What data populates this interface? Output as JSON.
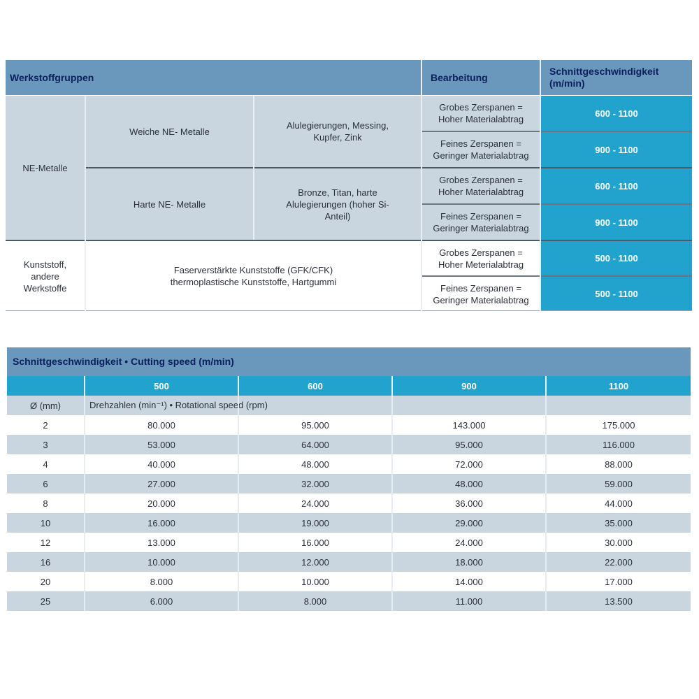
{
  "material_table": {
    "headers": {
      "groups": "Werkstoffgruppen",
      "processing": "Bearbeitung",
      "speed": "Schnittgeschwindigkeit (m/min)"
    },
    "groups": [
      {
        "name": "NE-Metalle",
        "subgroups": [
          {
            "name": "Weiche NE- Metalle",
            "materials": "Alulegierungen, Messing, Kupfer, Zink",
            "rows": [
              {
                "processing": "Grobes Zerspanen = Hoher Materialabtrag",
                "speed": "600 - 1100"
              },
              {
                "processing": "Feines Zerspanen = Geringer Materialabtrag",
                "speed": "900 - 1100"
              }
            ]
          },
          {
            "name": "Harte NE- Metalle",
            "materials": "Bronze, Titan, harte Alulegierungen (hoher Si-Anteil)",
            "rows": [
              {
                "processing": "Grobes Zerspanen = Hoher Materialabtrag",
                "speed": "600 - 1100"
              },
              {
                "processing": "Feines Zerspanen = Geringer Materialabtrag",
                "speed": "900 - 1100"
              }
            ]
          }
        ]
      },
      {
        "name": "Kunststoff, andere Werkstoffe",
        "materials": "Faserverstärkte Kunststoffe (GFK/CFK) thermoplastische Kunststoffe, Hartgummi",
        "rows": [
          {
            "processing": "Grobes Zerspanen = Hoher Meterialabtrag",
            "speed": "500 - 1100"
          },
          {
            "processing": "Feines Zerspanen = Geringer Materialabtrag",
            "speed": "500 - 1100"
          }
        ]
      }
    ],
    "colors": {
      "header": "#6a98bc",
      "body": "#c9d6df",
      "speed": "#21a3cd",
      "header_text": "#0b1f5c"
    }
  },
  "speed_table": {
    "title": "Schnittgeschwindigkeit • Cutting speed (m/min)",
    "speeds": [
      "500",
      "600",
      "900",
      "1100"
    ],
    "diameter_label": "Ø (mm)",
    "rpm_label": "Drehzahlen (min⁻¹) • Rotational speed (rpm)",
    "rows": [
      [
        "2",
        "80.000",
        "95.000",
        "143.000",
        "175.000"
      ],
      [
        "3",
        "53.000",
        "64.000",
        "95.000",
        "116.000"
      ],
      [
        "4",
        "40.000",
        "48.000",
        "72.000",
        "88.000"
      ],
      [
        "6",
        "27.000",
        "32.000",
        "48.000",
        "59.000"
      ],
      [
        "8",
        "20.000",
        "24.000",
        "36.000",
        "44.000"
      ],
      [
        "10",
        "16.000",
        "19.000",
        "29.000",
        "35.000"
      ],
      [
        "12",
        "13.000",
        "16.000",
        "24.000",
        "30.000"
      ],
      [
        "16",
        "10.000",
        "12.000",
        "18.000",
        "22.000"
      ],
      [
        "20",
        "8.000",
        "10.000",
        "14.000",
        "17.000"
      ],
      [
        "25",
        "6.000",
        "8.000",
        "11.000",
        "13.500"
      ]
    ]
  }
}
